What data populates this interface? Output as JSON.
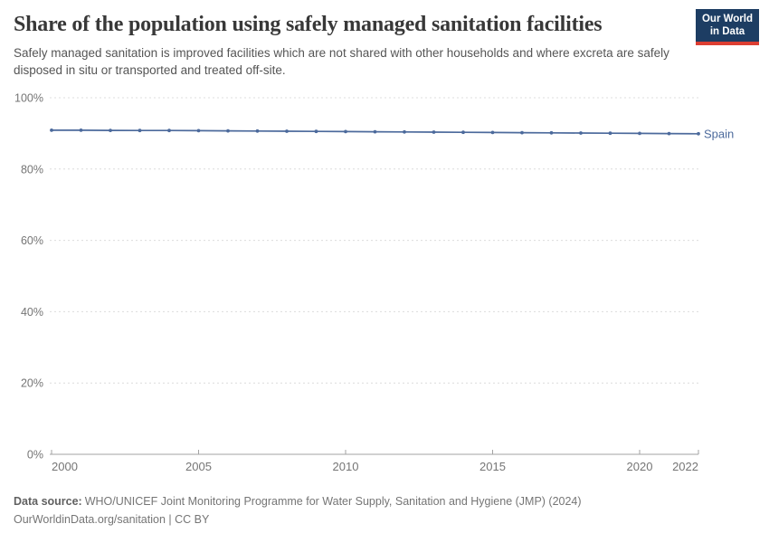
{
  "header": {
    "title": "Share of the population using safely managed sanitation facilities",
    "subtitle": "Safely managed sanitation is improved facilities which are not shared with other households and where excreta are safely disposed in situ or transported and treated off-site.",
    "logo": {
      "line1": "Our World",
      "line2": "in Data",
      "bg_color": "#1d3d63",
      "accent_color": "#dc3e32"
    }
  },
  "chart_data": {
    "type": "line",
    "title": "Share of the population using safely managed sanitation facilities",
    "xlabel": "",
    "ylabel": "",
    "x": [
      2000,
      2001,
      2002,
      2003,
      2004,
      2005,
      2006,
      2007,
      2008,
      2009,
      2010,
      2011,
      2012,
      2013,
      2014,
      2015,
      2016,
      2017,
      2018,
      2019,
      2020,
      2021,
      2022
    ],
    "series": [
      {
        "name": "Spain",
        "color": "#4C6A9C",
        "values": [
          90.9,
          90.9,
          90.85,
          90.8,
          90.8,
          90.75,
          90.7,
          90.65,
          90.6,
          90.55,
          90.5,
          90.45,
          90.4,
          90.35,
          90.3,
          90.25,
          90.2,
          90.15,
          90.1,
          90.05,
          90.0,
          89.95,
          89.9
        ]
      }
    ],
    "xlim": [
      2000,
      2022
    ],
    "ylim": [
      0,
      100
    ],
    "x_ticks": [
      2000,
      2005,
      2010,
      2015,
      2020,
      2022
    ],
    "y_ticks": [
      0,
      20,
      40,
      60,
      80,
      100
    ],
    "y_tick_suffix": "%",
    "grid": "horizontal-dashed",
    "legend": "end-of-line-label",
    "colors": {
      "gridline": "#dcdcdc",
      "axis": "#a3a3a3",
      "tick_label": "#757575"
    }
  },
  "footer": {
    "source_label": "Data source:",
    "source_text": "WHO/UNICEF Joint Monitoring Programme for Water Supply, Sanitation and Hygiene (JMP) (2024)",
    "link_text": "OurWorldinData.org/sanitation | CC BY"
  }
}
